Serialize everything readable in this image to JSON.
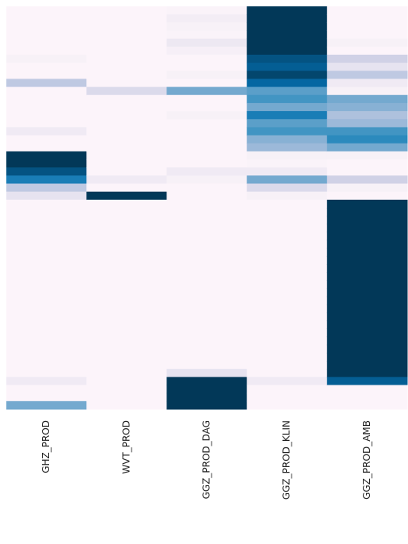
{
  "chart_data": {
    "type": "heatmap",
    "zlim": [
      0,
      1
    ],
    "colorscale": [
      "#fff7fb",
      "#ece7f2",
      "#d0d1e6",
      "#a6bddb",
      "#74a9cf",
      "#3690c0",
      "#0570b0",
      "#045a8d",
      "#023858"
    ],
    "series": [
      {
        "name": "GHZ_PROD",
        "values": [
          0.02,
          0.02,
          0.02,
          0.02,
          0.02,
          0.02,
          0.05,
          0.02,
          0.02,
          0.3,
          0.02,
          0.02,
          0.02,
          0.02,
          0.02,
          0.1,
          0.02,
          0.02,
          1,
          1,
          0.9,
          0.7,
          0.3,
          0.15,
          0.02,
          0.02,
          0.02,
          0.02,
          0.02,
          0.02,
          0.02,
          0.02,
          0.02,
          0.02,
          0.02,
          0.02,
          0.02,
          0.02,
          0.02,
          0.02,
          0.02,
          0.02,
          0.02,
          0.02,
          0.02,
          0.02,
          0.1,
          0.02,
          0.02,
          0.5
        ]
      },
      {
        "name": "WVT_PROD",
        "values": [
          0.02,
          0.02,
          0.02,
          0.02,
          0.02,
          0.02,
          0.02,
          0.02,
          0.02,
          0.02,
          0.2,
          0.02,
          0.02,
          0.02,
          0.02,
          0.02,
          0.02,
          0.02,
          0.02,
          0.02,
          0.02,
          0.1,
          0.02,
          1,
          0.02,
          0.02,
          0.02,
          0.02,
          0.02,
          0.02,
          0.02,
          0.02,
          0.02,
          0.02,
          0.02,
          0.02,
          0.02,
          0.02,
          0.02,
          0.02,
          0.02,
          0.02,
          0.02,
          0.02,
          0.02,
          0.02,
          0.02,
          0.02,
          0.02,
          0.02
        ]
      },
      {
        "name": "GGZ_PROD_DAG",
        "values": [
          0.03,
          0.08,
          0.05,
          0.03,
          0.12,
          0.06,
          0.02,
          0.02,
          0.05,
          0.02,
          0.5,
          0.02,
          0.02,
          0.05,
          0.02,
          0.02,
          0.02,
          0.02,
          0.02,
          0.02,
          0.1,
          0.05,
          0.02,
          0.02,
          0.02,
          0.02,
          0.02,
          0.02,
          0.02,
          0.02,
          0.02,
          0.02,
          0.02,
          0.02,
          0.02,
          0.02,
          0.02,
          0.02,
          0.02,
          0.02,
          0.02,
          0.02,
          0.02,
          0.02,
          0.02,
          0.15,
          1,
          1,
          1,
          1
        ]
      },
      {
        "name": "GGZ_PROD_KLIN",
        "values": [
          1,
          1,
          1,
          1,
          1,
          1,
          0.9,
          0.85,
          0.95,
          0.8,
          0.55,
          0.6,
          0.5,
          0.7,
          0.55,
          0.6,
          0.45,
          0.4,
          0.05,
          0.03,
          0.1,
          0.5,
          0.2,
          0.05,
          0.02,
          0.02,
          0.02,
          0.02,
          0.02,
          0.02,
          0.02,
          0.02,
          0.02,
          0.02,
          0.02,
          0.02,
          0.02,
          0.02,
          0.02,
          0.02,
          0.02,
          0.02,
          0.02,
          0.02,
          0.02,
          0.02,
          0.1,
          0.02,
          0.02,
          0.02
        ]
      },
      {
        "name": "GGZ_PROD_AMB",
        "values": [
          0.02,
          0.02,
          0.02,
          0.02,
          0.05,
          0.02,
          0.25,
          0.15,
          0.3,
          0.1,
          0.05,
          0.5,
          0.45,
          0.35,
          0.4,
          0.6,
          0.65,
          0.5,
          0.05,
          0.02,
          0.02,
          0.25,
          0.05,
          0.02,
          1,
          1,
          1,
          1,
          1,
          1,
          1,
          1,
          1,
          1,
          1,
          1,
          1,
          1,
          1,
          1,
          1,
          1,
          1,
          1,
          1,
          1,
          0.85,
          0.02,
          0.02,
          0.02
        ]
      }
    ]
  }
}
